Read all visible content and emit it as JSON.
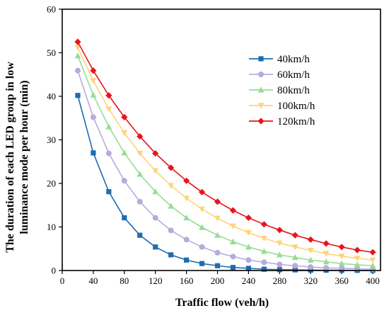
{
  "chart_data": {
    "type": "line",
    "xlabel": "Traffic flow (veh/h)",
    "ylabel_lines": [
      "The duration of each LED group in low",
      "luminance mode per hour (min)"
    ],
    "xlim": [
      0,
      410
    ],
    "ylim": [
      0,
      60
    ],
    "xticks": [
      0,
      40,
      80,
      120,
      160,
      200,
      240,
      280,
      320,
      360,
      400
    ],
    "yticks": [
      0,
      10,
      20,
      30,
      40,
      50,
      60
    ],
    "grid": false,
    "legend_position": "top-right",
    "x": [
      20,
      40,
      60,
      80,
      100,
      120,
      140,
      160,
      180,
      200,
      220,
      240,
      260,
      280,
      300,
      320,
      340,
      360,
      380,
      400
    ],
    "series": [
      {
        "name": "40km/h",
        "color": "#1f6cb0",
        "marker": "square",
        "values": [
          40.2,
          27.0,
          18.1,
          12.1,
          8.1,
          5.4,
          3.6,
          2.4,
          1.6,
          1.1,
          0.7,
          0.5,
          0.3,
          0.2,
          0.15,
          0.1,
          0.07,
          0.05,
          0.03,
          0.02
        ]
      },
      {
        "name": "60km/h",
        "color": "#b9a9dd",
        "marker": "circle",
        "values": [
          45.9,
          35.2,
          26.9,
          20.6,
          15.8,
          12.1,
          9.2,
          7.1,
          5.4,
          4.1,
          3.2,
          2.4,
          1.9,
          1.4,
          1.1,
          0.8,
          0.6,
          0.5,
          0.4,
          0.3
        ]
      },
      {
        "name": "80km/h",
        "color": "#97dc97",
        "marker": "triangle",
        "values": [
          49.3,
          40.3,
          33.0,
          27.0,
          22.1,
          18.1,
          14.8,
          12.1,
          9.9,
          8.1,
          6.6,
          5.4,
          4.4,
          3.6,
          3.0,
          2.4,
          2.0,
          1.6,
          1.3,
          1.1
        ]
      },
      {
        "name": "100km/h",
        "color": "#ffd37a",
        "marker": "triangle-down",
        "values": [
          51.2,
          43.6,
          37.1,
          31.6,
          26.9,
          22.9,
          19.5,
          16.6,
          14.1,
          12.0,
          10.2,
          8.7,
          7.4,
          6.3,
          5.4,
          4.6,
          3.9,
          3.3,
          2.8,
          2.4
        ]
      },
      {
        "name": "120km/h",
        "color": "#e8141c",
        "marker": "diamond",
        "values": [
          52.5,
          45.9,
          40.2,
          35.2,
          30.8,
          26.9,
          23.6,
          20.6,
          18.0,
          15.8,
          13.8,
          12.1,
          10.6,
          9.3,
          8.1,
          7.1,
          6.2,
          5.4,
          4.7,
          4.2
        ]
      }
    ]
  }
}
